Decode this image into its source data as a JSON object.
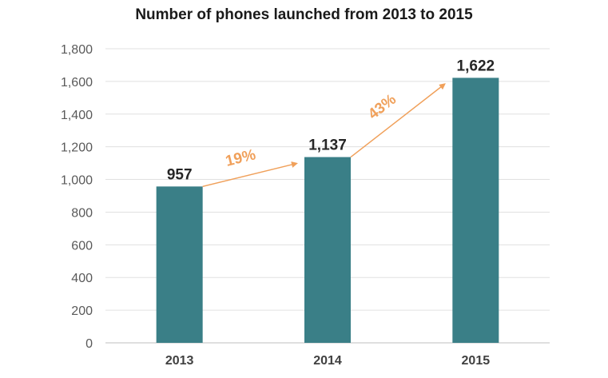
{
  "chart_data": {
    "type": "bar",
    "title": "Number of phones launched from 2013 to 2015",
    "xlabel": "",
    "ylabel": "",
    "categories": [
      "2013",
      "2014",
      "2015"
    ],
    "values": [
      957,
      1137,
      1622
    ],
    "data_labels": [
      "957",
      "1,137",
      "1,622"
    ],
    "ylim": [
      0,
      1800
    ],
    "y_ticks": [
      0,
      200,
      400,
      600,
      800,
      1000,
      1200,
      1400,
      1600,
      1800
    ],
    "y_tick_labels": [
      "0",
      "200",
      "400",
      "600",
      "800",
      "1,000",
      "1,200",
      "1,400",
      "1,600",
      "1,800"
    ],
    "grid": true,
    "legend": "none",
    "bar_color": "#3a7f87",
    "annotations": [
      {
        "from": "2013",
        "to": "2014",
        "label": "19%"
      },
      {
        "from": "2014",
        "to": "2015",
        "label": "43%"
      }
    ],
    "annotation_color": "#f0a05a"
  }
}
